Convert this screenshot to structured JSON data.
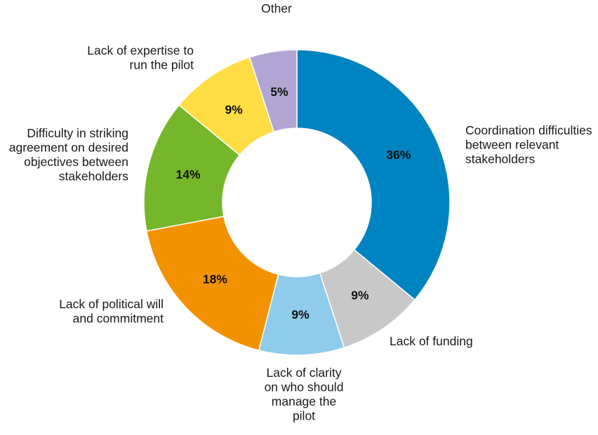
{
  "chart_data": {
    "type": "pie",
    "variant": "donut",
    "title": "",
    "slices": [
      {
        "label": [
          "Coordination difficulties",
          "between relevant",
          "stakeholders"
        ],
        "value": 36,
        "value_label": "36%",
        "color": "#0083c1"
      },
      {
        "label": [
          "Lack of funding"
        ],
        "value": 9,
        "value_label": "9%",
        "color": "#c8c8c8"
      },
      {
        "label": [
          "Lack of clarity",
          "on who should",
          "manage the",
          "pilot"
        ],
        "value": 9,
        "value_label": "9%",
        "color": "#8fcbeb"
      },
      {
        "label": [
          "Lack of political will",
          "and commitment"
        ],
        "value": 18,
        "value_label": "18%",
        "color": "#f39200"
      },
      {
        "label": [
          "Difficulty in striking",
          "agreement on desired",
          "objectives between",
          "stakeholders"
        ],
        "value": 14,
        "value_label": "14%",
        "color": "#75b62b"
      },
      {
        "label": [
          "Lack of expertise to",
          "run the pilot"
        ],
        "value": 9,
        "value_label": "9%",
        "color": "#fedd45"
      },
      {
        "label": [
          "Other"
        ],
        "value": 5,
        "value_label": "5%",
        "color": "#b1a6d3"
      }
    ],
    "start": "top",
    "direction": "clockwise",
    "legend": "none"
  }
}
